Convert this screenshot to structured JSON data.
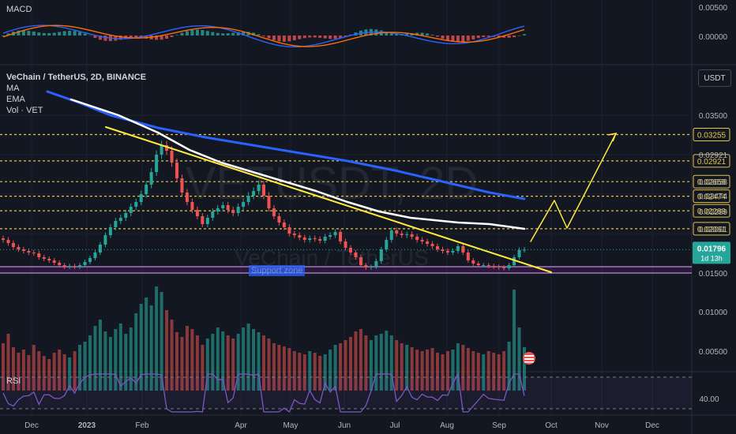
{
  "symbol": {
    "title": "VeChain / TetherUS, 2D, BINANCE",
    "indicators": [
      "MA",
      "EMA",
      "Vol · VET"
    ],
    "watermark_big": "VETUSDT, 2D",
    "watermark_small": "VeChain / TetherUS"
  },
  "macd_label": "MACD",
  "rsi_label": "RSI",
  "currency_button": "USDT",
  "support_label": "Support zone",
  "last_price": {
    "value": "0.01796",
    "countdown": "1d 13h"
  },
  "colors": {
    "background": "#131722",
    "up": "#26a69a",
    "down": "#ef5350",
    "ma_blue": "#2962ff",
    "ema_white": "#ffffff",
    "trendline": "#ffeb3b",
    "support": "#9c27b0",
    "level_line": "#e6c547"
  },
  "chart_data": {
    "type": "candlestick",
    "x_ticks": [
      "Dec",
      "2023",
      "Feb",
      "Apr",
      "May",
      "Jun",
      "Jul",
      "Aug",
      "Sep",
      "Oct",
      "Nov",
      "Dec"
    ],
    "price_axis": {
      "ticks": [
        "0.03500",
        "0.02921",
        "0.02658",
        "0.02474",
        "0.02289",
        "0.02061",
        "0.01500",
        "0.01000",
        "0.00500"
      ],
      "range": [
        0.004,
        0.038
      ]
    },
    "macd_axis": {
      "ticks": [
        "0.00500",
        "0.00000"
      ]
    },
    "rsi_axis": {
      "ticks": [
        "40.00"
      ]
    },
    "levels": [
      {
        "price": 0.03255,
        "label": "0.03255"
      },
      {
        "price": 0.02921,
        "label": "0.02921"
      },
      {
        "price": 0.02658,
        "label": "0.02658"
      },
      {
        "price": 0.02474,
        "label": "0.02474"
      },
      {
        "price": 0.02289,
        "label": "0.02289"
      },
      {
        "price": 0.02061,
        "label": "0.02061"
      }
    ],
    "support_zone": [
      0.015,
      0.0158
    ],
    "closes": [
      0.0192,
      0.0188,
      0.0183,
      0.018,
      0.0178,
      0.0176,
      0.0175,
      0.017,
      0.0168,
      0.0166,
      0.0163,
      0.016,
      0.0158,
      0.0159,
      0.0158,
      0.016,
      0.0164,
      0.0169,
      0.0176,
      0.0186,
      0.0198,
      0.0208,
      0.0216,
      0.022,
      0.0226,
      0.0234,
      0.024,
      0.025,
      0.0262,
      0.0278,
      0.03,
      0.0312,
      0.0305,
      0.029,
      0.027,
      0.0252,
      0.024,
      0.023,
      0.0222,
      0.0212,
      0.022,
      0.0228,
      0.0232,
      0.0236,
      0.023,
      0.0226,
      0.0234,
      0.024,
      0.0248,
      0.0254,
      0.0262,
      0.0248,
      0.0232,
      0.0222,
      0.0214,
      0.0208,
      0.02,
      0.0198,
      0.0195,
      0.0192,
      0.0194,
      0.0193,
      0.0191,
      0.0196,
      0.0198,
      0.0202,
      0.019,
      0.0182,
      0.0176,
      0.017,
      0.016,
      0.0157,
      0.0158,
      0.0165,
      0.018,
      0.0192,
      0.0204,
      0.02,
      0.0198,
      0.0199,
      0.0196,
      0.0192,
      0.019,
      0.0187,
      0.0184,
      0.018,
      0.0178,
      0.0176,
      0.0178,
      0.0184,
      0.0176,
      0.0166,
      0.0162,
      0.016,
      0.016,
      0.0159,
      0.0158,
      0.0157,
      0.0156,
      0.016,
      0.017,
      0.0179,
      0.01796
    ],
    "volumes": [
      0.006,
      0.0072,
      0.0055,
      0.0048,
      0.0052,
      0.0045,
      0.0058,
      0.005,
      0.0044,
      0.004,
      0.0048,
      0.0052,
      0.0046,
      0.0042,
      0.005,
      0.0058,
      0.0062,
      0.007,
      0.0082,
      0.009,
      0.0075,
      0.0068,
      0.0078,
      0.0085,
      0.0072,
      0.008,
      0.0098,
      0.011,
      0.0118,
      0.0108,
      0.0132,
      0.0125,
      0.0102,
      0.009,
      0.0074,
      0.0068,
      0.0082,
      0.0078,
      0.007,
      0.0058,
      0.0066,
      0.0072,
      0.008,
      0.0075,
      0.007,
      0.0066,
      0.0072,
      0.008,
      0.0085,
      0.0078,
      0.0074,
      0.007,
      0.0066,
      0.006,
      0.0058,
      0.0056,
      0.0054,
      0.005,
      0.0048,
      0.0046,
      0.005,
      0.0048,
      0.0044,
      0.0046,
      0.0052,
      0.0058,
      0.006,
      0.0064,
      0.0068,
      0.0075,
      0.0078,
      0.007,
      0.0064,
      0.007,
      0.0072,
      0.0076,
      0.007,
      0.0064,
      0.006,
      0.0058,
      0.0055,
      0.0052,
      0.005,
      0.0052,
      0.0054,
      0.0048,
      0.0046,
      0.005,
      0.0052,
      0.006,
      0.0058,
      0.0054,
      0.005,
      0.0048,
      0.0046,
      0.005,
      0.0048,
      0.0046,
      0.005,
      0.0062,
      0.0128,
      0.008,
      0.0055
    ],
    "ma_line": [
      [
        60,
        0.038
      ],
      [
        100,
        0.0366
      ],
      [
        140,
        0.035
      ],
      [
        200,
        0.0334
      ],
      [
        260,
        0.0322
      ],
      [
        320,
        0.0312
      ],
      [
        380,
        0.0302
      ],
      [
        440,
        0.0292
      ],
      [
        500,
        0.028
      ],
      [
        560,
        0.0266
      ],
      [
        620,
        0.0252
      ],
      [
        664,
        0.0244
      ]
    ],
    "ema_line": [
      [
        90,
        0.037
      ],
      [
        150,
        0.035
      ],
      [
        200,
        0.0328
      ],
      [
        240,
        0.0306
      ],
      [
        280,
        0.029
      ],
      [
        320,
        0.0278
      ],
      [
        360,
        0.0266
      ],
      [
        400,
        0.0254
      ],
      [
        440,
        0.024
      ],
      [
        480,
        0.0228
      ],
      [
        520,
        0.022
      ],
      [
        580,
        0.0214
      ],
      [
        620,
        0.0212
      ],
      [
        664,
        0.0206
      ]
    ],
    "trendline": [
      [
        134,
        0.0335
      ],
      [
        698,
        0.0151
      ]
    ],
    "projection": [
      [
        672,
        0.019
      ],
      [
        702,
        0.0242
      ],
      [
        718,
        0.0207
      ],
      [
        780,
        0.0327
      ]
    ]
  }
}
